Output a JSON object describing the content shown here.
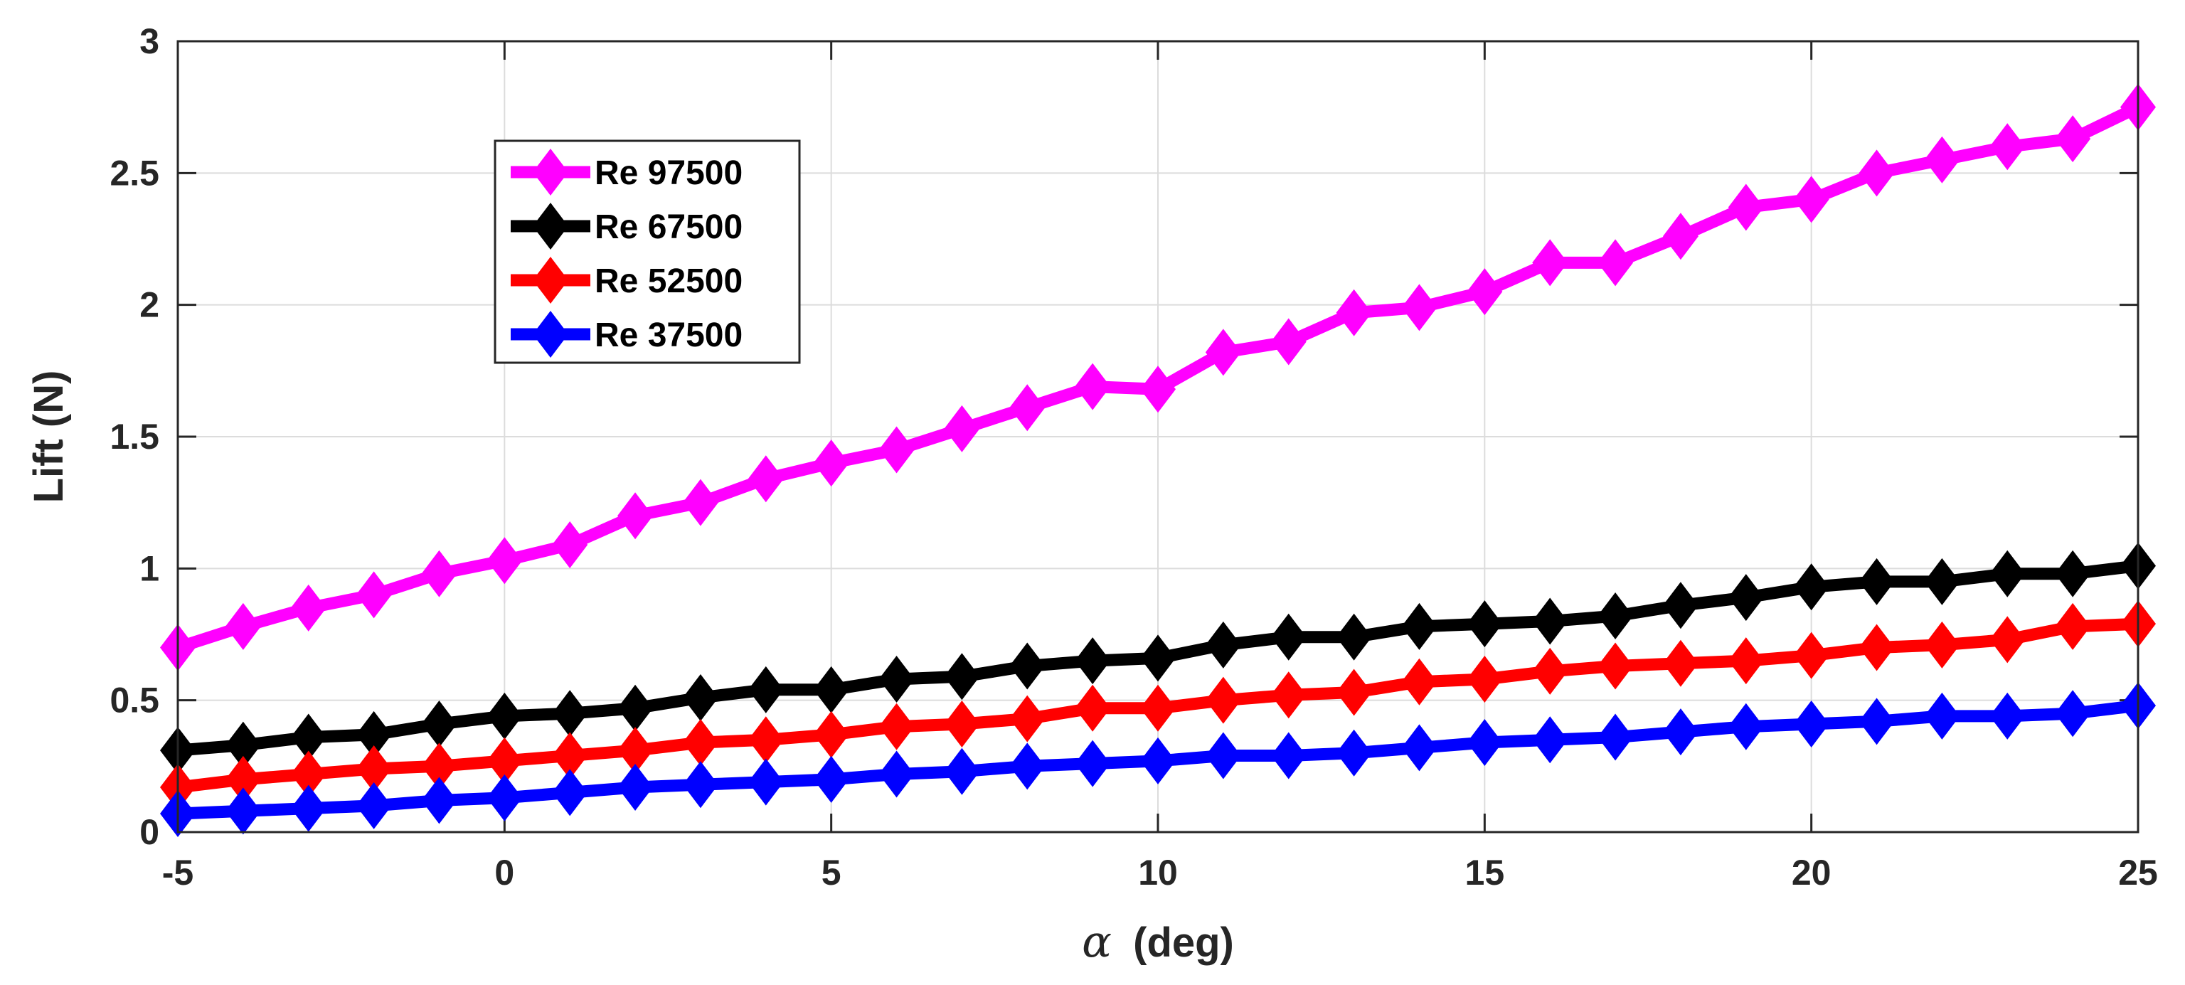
{
  "chart_data": {
    "type": "line",
    "title": "",
    "xlabel": "α (deg)",
    "xlabel_symbol": "α",
    "xlabel_unit": "(deg)",
    "ylabel": "Lift (N)",
    "xlim": [
      -5,
      25
    ],
    "ylim": [
      0,
      3
    ],
    "xticks": [
      -5,
      0,
      5,
      10,
      15,
      20,
      25
    ],
    "yticks": [
      0,
      0.5,
      1,
      1.5,
      2,
      2.5,
      3
    ],
    "xtick_labels": [
      "-5",
      "0",
      "5",
      "10",
      "15",
      "20",
      "25"
    ],
    "ytick_labels": [
      "0",
      "0.5",
      "1",
      "1.5",
      "2",
      "2.5",
      "3"
    ],
    "grid": true,
    "legend_position": "upper-left",
    "x": [
      -5,
      -4,
      -3,
      -2,
      -1,
      0,
      1,
      2,
      3,
      4,
      5,
      6,
      7,
      8,
      9,
      10,
      11,
      12,
      13,
      14,
      15,
      16,
      17,
      18,
      19,
      20,
      21,
      22,
      23,
      24,
      25
    ],
    "series": [
      {
        "name": "Re 97500",
        "color": "#ff00ff",
        "marker": "diamond",
        "values": [
          0.7,
          0.78,
          0.85,
          0.9,
          0.98,
          1.03,
          1.09,
          1.2,
          1.25,
          1.34,
          1.4,
          1.45,
          1.53,
          1.61,
          1.69,
          1.68,
          1.82,
          1.86,
          1.97,
          1.99,
          2.05,
          2.16,
          2.16,
          2.26,
          2.37,
          2.4,
          2.5,
          2.55,
          2.6,
          2.63,
          2.75
        ]
      },
      {
        "name": "Re 67500",
        "color": "#000000",
        "marker": "diamond",
        "values": [
          0.31,
          0.33,
          0.36,
          0.37,
          0.41,
          0.44,
          0.45,
          0.47,
          0.51,
          0.54,
          0.54,
          0.58,
          0.59,
          0.63,
          0.65,
          0.66,
          0.71,
          0.74,
          0.74,
          0.78,
          0.79,
          0.8,
          0.82,
          0.86,
          0.89,
          0.93,
          0.95,
          0.95,
          0.98,
          0.98,
          1.01
        ]
      },
      {
        "name": "Re 52500",
        "color": "#ff0000",
        "marker": "diamond",
        "values": [
          0.17,
          0.2,
          0.22,
          0.24,
          0.25,
          0.27,
          0.29,
          0.31,
          0.34,
          0.35,
          0.37,
          0.4,
          0.41,
          0.43,
          0.47,
          0.47,
          0.5,
          0.52,
          0.53,
          0.57,
          0.58,
          0.61,
          0.63,
          0.64,
          0.65,
          0.67,
          0.7,
          0.71,
          0.73,
          0.78,
          0.79
        ]
      },
      {
        "name": "Re 37500",
        "color": "#0000ff",
        "marker": "diamond",
        "values": [
          0.07,
          0.08,
          0.09,
          0.1,
          0.12,
          0.13,
          0.15,
          0.17,
          0.18,
          0.19,
          0.2,
          0.22,
          0.23,
          0.25,
          0.26,
          0.27,
          0.29,
          0.29,
          0.3,
          0.32,
          0.34,
          0.35,
          0.36,
          0.38,
          0.4,
          0.41,
          0.42,
          0.44,
          0.44,
          0.45,
          0.48
        ]
      }
    ]
  }
}
